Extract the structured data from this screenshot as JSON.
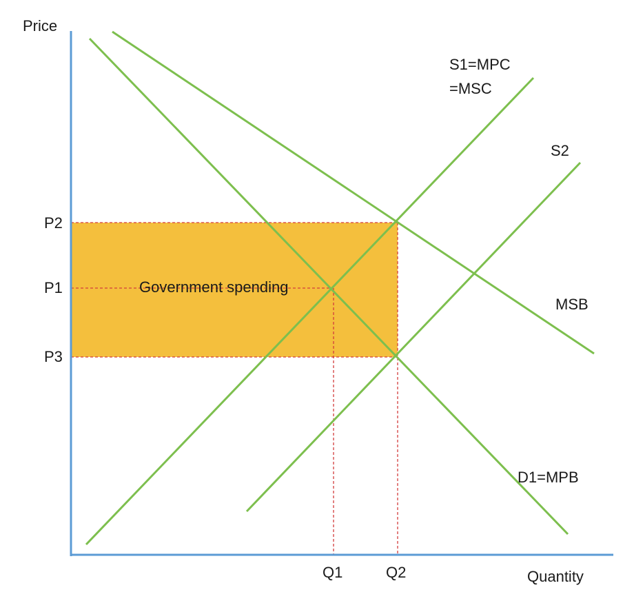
{
  "axes": {
    "y_label": "Price",
    "x_label": "Quantity"
  },
  "price_levels": {
    "p1": "P1",
    "p2": "P2",
    "p3": "P3"
  },
  "quantity_levels": {
    "q1": "Q1",
    "q2": "Q2"
  },
  "curves": {
    "s1": {
      "label_line1": "S1=MPC",
      "label_line2": "=MSC"
    },
    "s2": {
      "label": "S2"
    },
    "msb": {
      "label": "MSB"
    },
    "d1": {
      "label": "D1=MPB"
    }
  },
  "area": {
    "label": "Government spending"
  },
  "colors": {
    "axis": "#5b9bd5",
    "curve": "#7dbf4e",
    "guide": "#d23c3c",
    "area": "#f4bf3d"
  }
}
